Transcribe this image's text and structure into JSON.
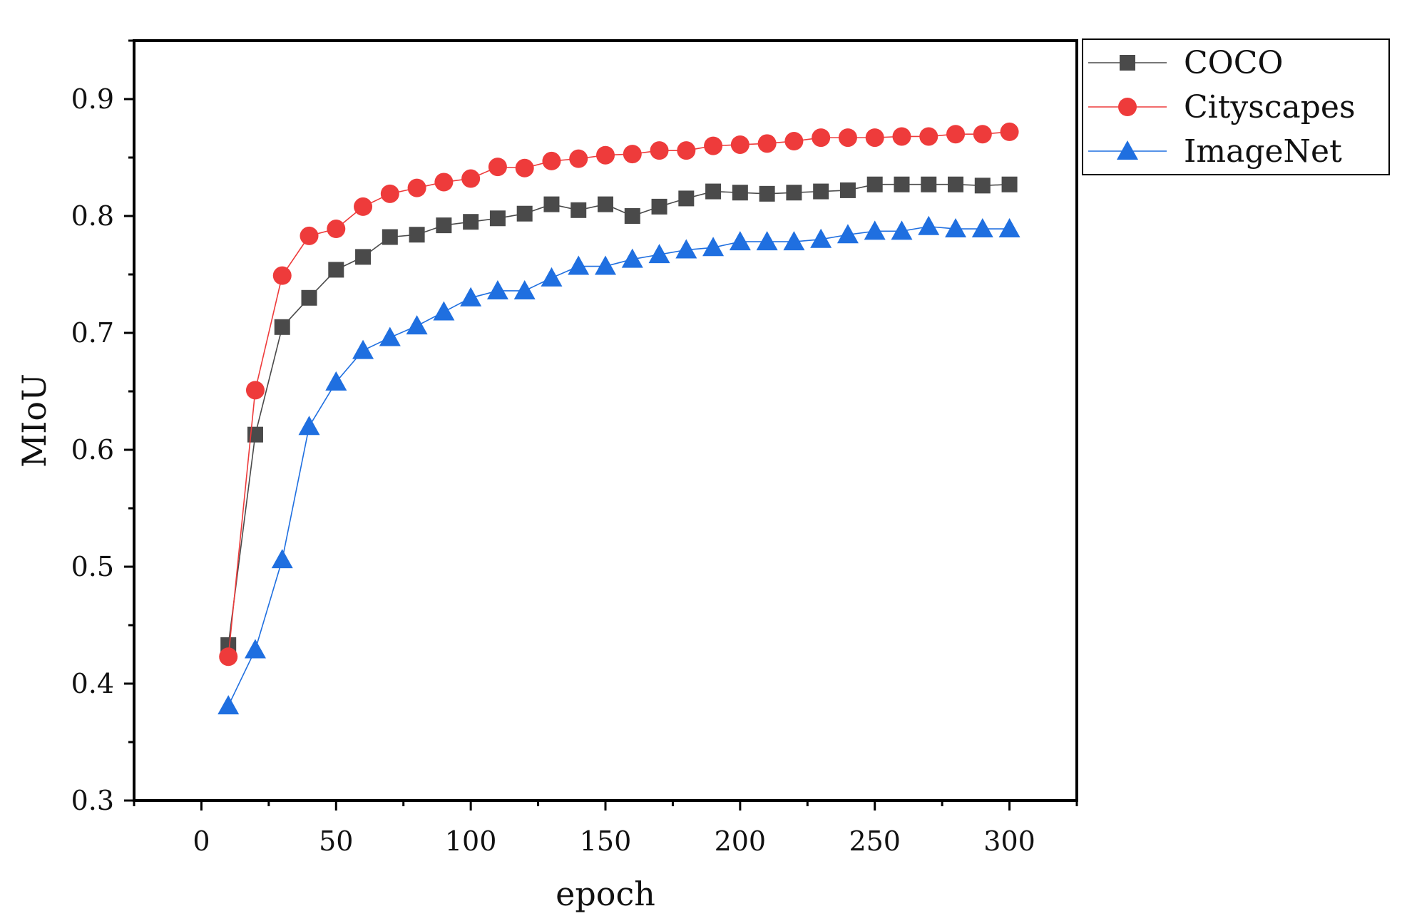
{
  "chart_data": {
    "type": "line",
    "title": "",
    "xlabel": "epoch",
    "ylabel": "MIoU",
    "xlim": [
      -25,
      325
    ],
    "ylim": [
      0.3,
      0.95
    ],
    "xticks": [
      0,
      50,
      100,
      150,
      200,
      250,
      300
    ],
    "xtick_labels": [
      "0",
      "50",
      "100",
      "150",
      "200",
      "250",
      "300"
    ],
    "yticks": [
      0.3,
      0.4,
      0.5,
      0.6,
      0.7,
      0.8,
      0.9
    ],
    "ytick_labels": [
      "0.3",
      "0.4",
      "0.5",
      "0.6",
      "0.7",
      "0.8",
      "0.9"
    ],
    "grid": false,
    "legend_position": "outside-top-right",
    "x": [
      10,
      20,
      30,
      40,
      50,
      60,
      70,
      80,
      90,
      100,
      110,
      120,
      130,
      140,
      150,
      160,
      170,
      180,
      190,
      200,
      210,
      220,
      230,
      240,
      250,
      260,
      270,
      280,
      290,
      300
    ],
    "series": [
      {
        "name": "COCO",
        "color": "#4a4a4a",
        "marker": "square",
        "values": [
          0.433,
          0.613,
          0.705,
          0.73,
          0.754,
          0.765,
          0.782,
          0.784,
          0.792,
          0.795,
          0.798,
          0.802,
          0.81,
          0.805,
          0.81,
          0.8,
          0.808,
          0.815,
          0.821,
          0.82,
          0.819,
          0.82,
          0.821,
          0.822,
          0.827,
          0.827,
          0.827,
          0.827,
          0.826,
          0.827
        ]
      },
      {
        "name": "Cityscapes",
        "color": "#ee3b3b",
        "marker": "circle",
        "values": [
          0.423,
          0.651,
          0.749,
          0.783,
          0.789,
          0.808,
          0.819,
          0.824,
          0.829,
          0.832,
          0.842,
          0.841,
          0.847,
          0.849,
          0.852,
          0.853,
          0.856,
          0.856,
          0.86,
          0.861,
          0.862,
          0.864,
          0.867,
          0.867,
          0.867,
          0.868,
          0.868,
          0.87,
          0.87,
          0.872
        ]
      },
      {
        "name": "ImageNet",
        "color": "#1f6fe0",
        "marker": "triangle",
        "values": [
          0.381,
          0.429,
          0.506,
          0.62,
          0.658,
          0.685,
          0.696,
          0.706,
          0.718,
          0.73,
          0.736,
          0.736,
          0.747,
          0.757,
          0.757,
          0.763,
          0.767,
          0.771,
          0.773,
          0.778,
          0.778,
          0.778,
          0.78,
          0.784,
          0.787,
          0.787,
          0.791,
          0.789,
          0.789,
          0.789
        ]
      }
    ]
  }
}
